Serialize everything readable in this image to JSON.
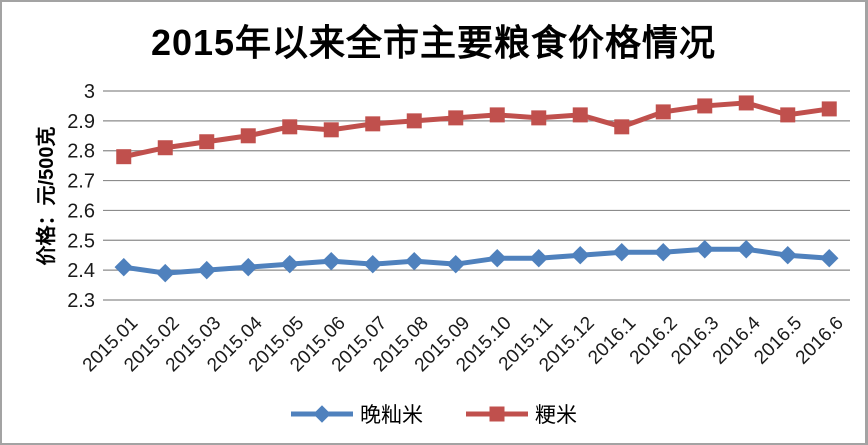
{
  "frame": {
    "background": "#ffffff",
    "border_color": "#a3a3a3"
  },
  "chart_data": {
    "type": "line",
    "title": "2015年以来全市主要粮食价格情况",
    "ylabel": "价格：元/500克",
    "xlabel": "",
    "categories": [
      "2015.01",
      "2015.02",
      "2015.03",
      "2015.04",
      "2015.05",
      "2015.06",
      "2015.07",
      "2015.08",
      "2015.09",
      "2015.10",
      "2015.11",
      "2015.12",
      "2016.1",
      "2016.2",
      "2016.3",
      "2016.4",
      "2016.5",
      "2016.6"
    ],
    "series": [
      {
        "name": "晚籼米",
        "color": "#4F81BD",
        "marker": "diamond",
        "values": [
          2.41,
          2.39,
          2.4,
          2.41,
          2.42,
          2.43,
          2.42,
          2.43,
          2.42,
          2.44,
          2.44,
          2.45,
          2.46,
          2.46,
          2.47,
          2.47,
          2.45,
          2.44
        ]
      },
      {
        "name": "粳米",
        "color": "#C0504D",
        "marker": "square",
        "values": [
          2.78,
          2.81,
          2.83,
          2.85,
          2.88,
          2.87,
          2.89,
          2.9,
          2.91,
          2.92,
          2.91,
          2.92,
          2.88,
          2.93,
          2.95,
          2.96,
          2.92,
          2.94
        ]
      }
    ],
    "ylim": [
      2.3,
      3.0
    ],
    "ytick_step": 0.1,
    "ytick_labels": [
      "2.3",
      "2.4",
      "2.5",
      "2.6",
      "2.7",
      "2.8",
      "2.9",
      "3"
    ],
    "grid": true,
    "gridline_color": "#8c8c8c",
    "tick_label_color": "#1a1a1a",
    "legend_position": "bottom"
  }
}
